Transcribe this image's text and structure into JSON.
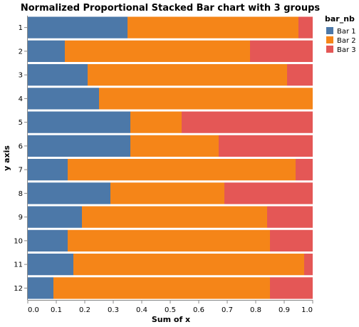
{
  "chart_data": {
    "type": "bar",
    "orientation": "horizontal",
    "stacked": true,
    "normalized": true,
    "title": "Normalized Proportional Stacked Bar chart with 3 groups",
    "xlabel": "Sum of x",
    "ylabel": "y axis",
    "xlim": [
      0,
      1
    ],
    "x_ticks": [
      "0.0",
      "0.1",
      "0.2",
      "0.3",
      "0.4",
      "0.5",
      "0.6",
      "0.7",
      "0.8",
      "0.9",
      "1.0"
    ],
    "categories": [
      "1",
      "2",
      "3",
      "4",
      "5",
      "6",
      "7",
      "8",
      "9",
      "10",
      "11",
      "12"
    ],
    "series": [
      {
        "name": "Bar 1",
        "color": "#4c78a8",
        "values": [
          0.35,
          0.13,
          0.21,
          0.25,
          0.36,
          0.36,
          0.14,
          0.29,
          0.19,
          0.14,
          0.16,
          0.09
        ]
      },
      {
        "name": "Bar 2",
        "color": "#f58518",
        "values": [
          0.6,
          0.65,
          0.7,
          0.75,
          0.18,
          0.31,
          0.8,
          0.4,
          0.65,
          0.71,
          0.81,
          0.76
        ]
      },
      {
        "name": "Bar 3",
        "color": "#e45756",
        "values": [
          0.05,
          0.22,
          0.09,
          0.0,
          0.46,
          0.33,
          0.06,
          0.31,
          0.16,
          0.15,
          0.03,
          0.15
        ]
      }
    ],
    "legend": {
      "title": "bar_nb",
      "position": "top-right"
    },
    "grid": false
  }
}
